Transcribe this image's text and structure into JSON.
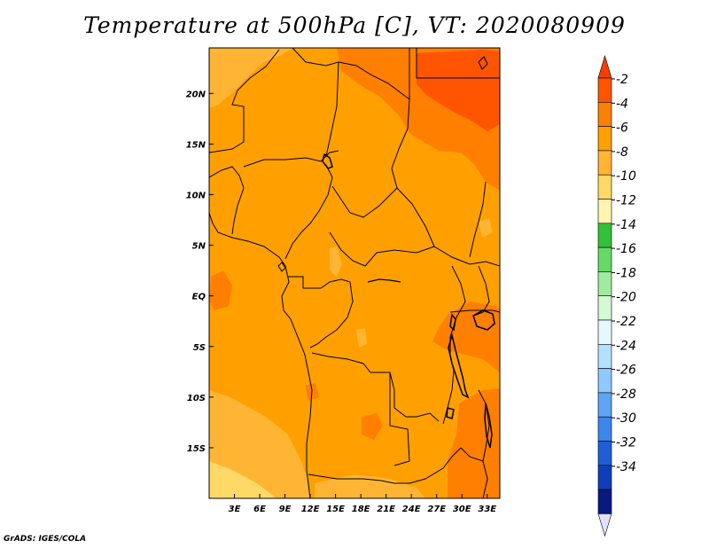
{
  "title": "Temperature at 500hPa [C], VT: 2020080909",
  "credit": "GrADS: IGES/COLA",
  "map": {
    "lon_range": [
      0,
      34.5
    ],
    "lat_range": [
      -20,
      24.5
    ],
    "lon_ticks": [
      "3E",
      "6E",
      "9E",
      "12E",
      "15E",
      "18E",
      "21E",
      "24E",
      "27E",
      "30E",
      "33E"
    ],
    "lon_tick_values": [
      3,
      6,
      9,
      12,
      15,
      18,
      21,
      24,
      27,
      30,
      33
    ],
    "lat_ticks": [
      "20N",
      "15N",
      "10N",
      "5N",
      "EQ",
      "5S",
      "10S",
      "15S"
    ],
    "lat_tick_values": [
      20,
      15,
      10,
      5,
      0,
      -5,
      -10,
      -15
    ],
    "dominant_color": "#ffa000"
  },
  "colorbar": {
    "labels": [
      "-2",
      "-4",
      "-6",
      "-8",
      "-10",
      "-12",
      "-14",
      "-16",
      "-18",
      "-20",
      "-22",
      "-24",
      "-26",
      "-28",
      "-30",
      "-32",
      "-34"
    ],
    "colors": [
      "#ff5500",
      "#ff7f00",
      "#ffa000",
      "#ffb533",
      "#ffd966",
      "#fff5b0",
      "#33c03a",
      "#66d966",
      "#a0eba0",
      "#d5f8d5",
      "#e6f8ff",
      "#b4e0ff",
      "#8ec8ff",
      "#5ea6f5",
      "#3d86ea",
      "#1e5fd8",
      "#0f3fb8",
      "#081a80"
    ],
    "top_color": "#ff3b00",
    "bottom_color": "#e1e1ff"
  }
}
